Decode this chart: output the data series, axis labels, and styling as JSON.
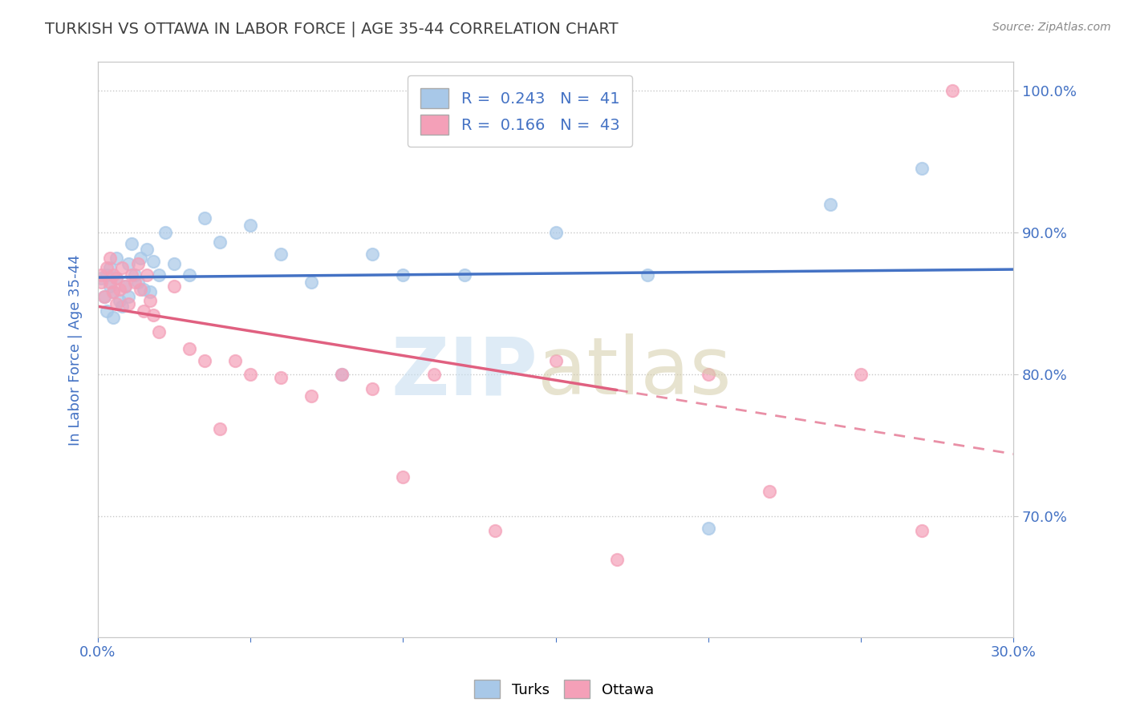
{
  "title": "TURKISH VS OTTAWA IN LABOR FORCE | AGE 35-44 CORRELATION CHART",
  "source": "Source: ZipAtlas.com",
  "ylabel": "In Labor Force | Age 35-44",
  "xlim": [
    0.0,
    0.3
  ],
  "ylim": [
    0.615,
    1.02
  ],
  "yticks": [
    0.7,
    0.8,
    0.9,
    1.0
  ],
  "ytick_labels": [
    "70.0%",
    "80.0%",
    "90.0%",
    "100.0%"
  ],
  "xticks": [
    0.0,
    0.05,
    0.1,
    0.15,
    0.2,
    0.25,
    0.3
  ],
  "turks_R": 0.243,
  "turks_N": 41,
  "ottawa_R": 0.166,
  "ottawa_N": 43,
  "turks_color": "#a8c8e8",
  "ottawa_color": "#f4a0b8",
  "turks_line_color": "#4472c4",
  "ottawa_line_color": "#e06080",
  "legend_text_color": "#4472c4",
  "title_color": "#404040",
  "axis_label_color": "#4472c4",
  "background_color": "#ffffff",
  "turks_x": [
    0.001,
    0.002,
    0.003,
    0.003,
    0.004,
    0.004,
    0.005,
    0.005,
    0.006,
    0.006,
    0.007,
    0.008,
    0.009,
    0.01,
    0.01,
    0.011,
    0.012,
    0.013,
    0.014,
    0.015,
    0.016,
    0.017,
    0.018,
    0.02,
    0.022,
    0.025,
    0.03,
    0.035,
    0.04,
    0.05,
    0.06,
    0.07,
    0.08,
    0.09,
    0.1,
    0.12,
    0.15,
    0.18,
    0.2,
    0.24,
    0.27
  ],
  "turks_y": [
    0.868,
    0.855,
    0.87,
    0.845,
    0.862,
    0.875,
    0.858,
    0.84,
    0.868,
    0.882,
    0.852,
    0.848,
    0.862,
    0.878,
    0.855,
    0.892,
    0.87,
    0.865,
    0.882,
    0.86,
    0.888,
    0.858,
    0.88,
    0.87,
    0.9,
    0.878,
    0.87,
    0.91,
    0.893,
    0.905,
    0.885,
    0.865,
    0.8,
    0.885,
    0.87,
    0.87,
    0.9,
    0.87,
    0.692,
    0.92,
    0.945
  ],
  "ottawa_x": [
    0.001,
    0.001,
    0.002,
    0.003,
    0.004,
    0.004,
    0.005,
    0.005,
    0.006,
    0.006,
    0.007,
    0.008,
    0.009,
    0.01,
    0.011,
    0.012,
    0.013,
    0.014,
    0.015,
    0.016,
    0.017,
    0.018,
    0.02,
    0.025,
    0.03,
    0.035,
    0.04,
    0.045,
    0.05,
    0.06,
    0.07,
    0.08,
    0.09,
    0.1,
    0.11,
    0.13,
    0.15,
    0.17,
    0.2,
    0.22,
    0.25,
    0.27,
    0.28
  ],
  "ottawa_y": [
    0.865,
    0.87,
    0.855,
    0.875,
    0.865,
    0.882,
    0.87,
    0.858,
    0.868,
    0.85,
    0.86,
    0.875,
    0.862,
    0.85,
    0.87,
    0.865,
    0.878,
    0.86,
    0.845,
    0.87,
    0.852,
    0.842,
    0.83,
    0.862,
    0.818,
    0.81,
    0.762,
    0.81,
    0.8,
    0.798,
    0.785,
    0.8,
    0.79,
    0.728,
    0.8,
    0.69,
    0.81,
    0.67,
    0.8,
    0.718,
    0.8,
    0.69,
    1.0
  ]
}
